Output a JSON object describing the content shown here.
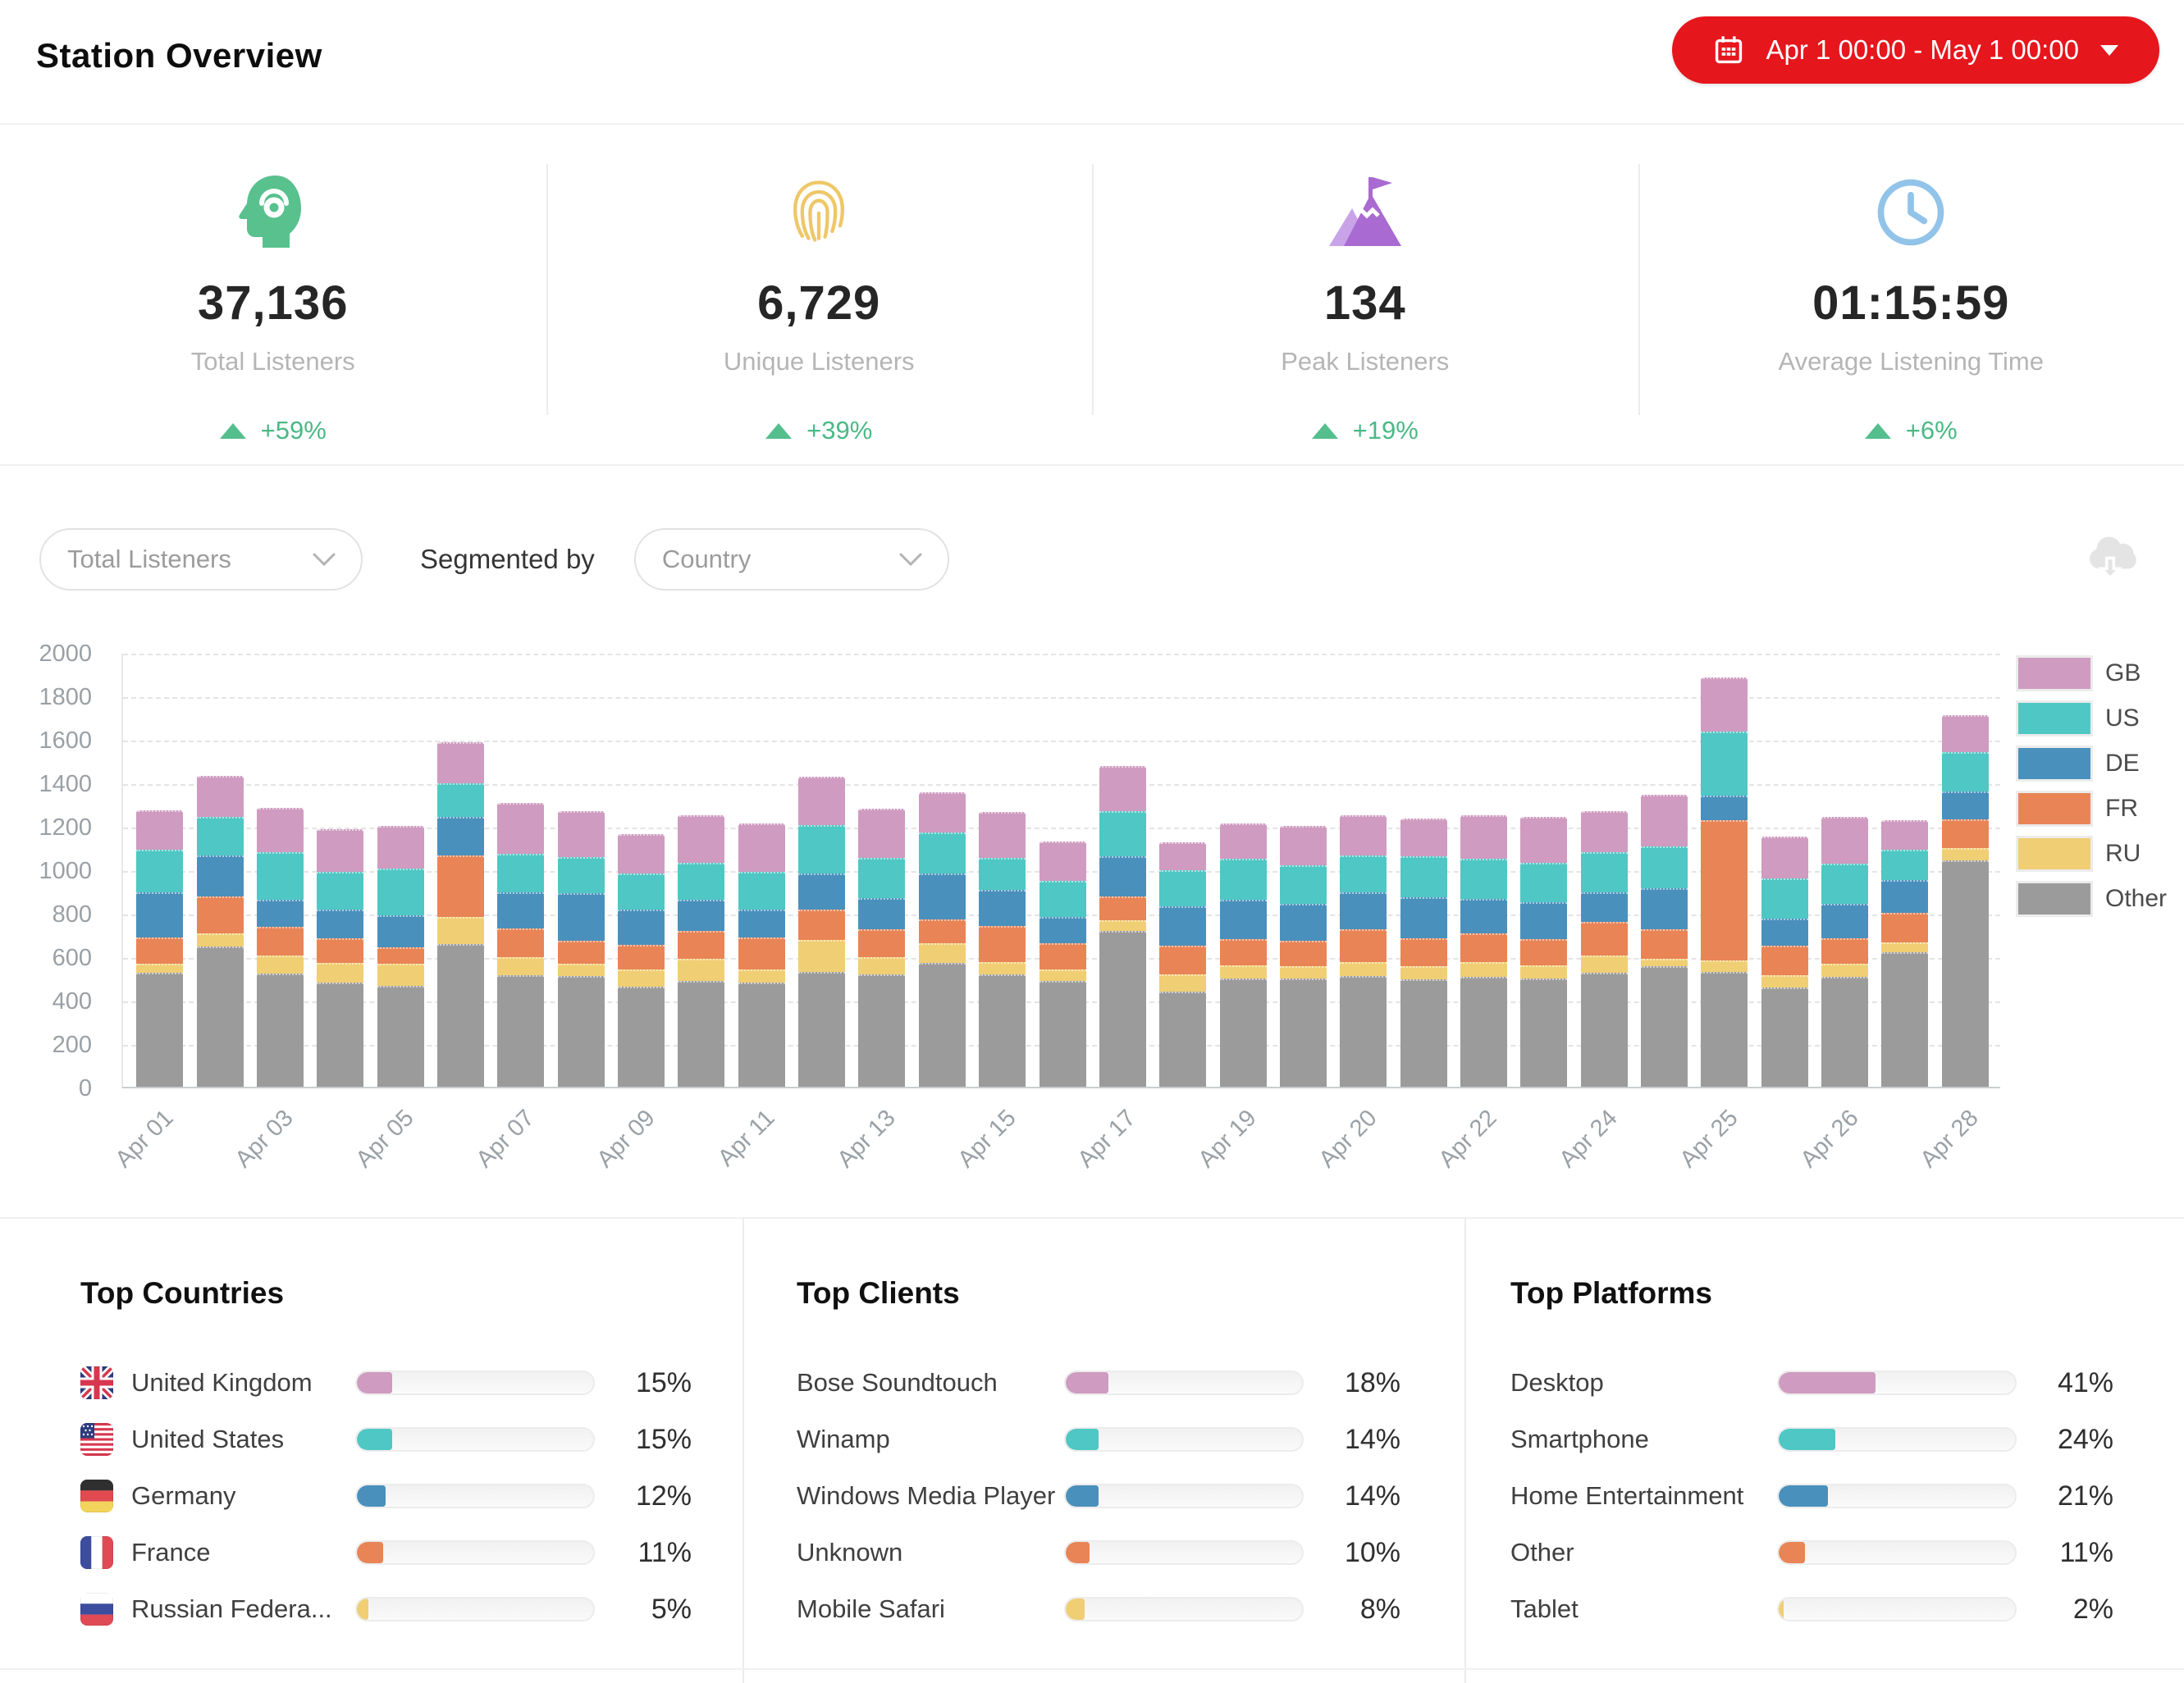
{
  "header": {
    "title": "Station Overview",
    "date_button": {
      "icon": "calendar-icon",
      "label": "Apr 1 00:00 - May 1 00:00",
      "color": "#e6161d"
    }
  },
  "stats": [
    {
      "icon": "listener-head-icon",
      "icon_color": "#58c18e",
      "value": "37,136",
      "label": "Total Listeners",
      "change": "+59%",
      "trend": "up"
    },
    {
      "icon": "fingerprint-icon",
      "icon_color": "#eec767",
      "value": "6,729",
      "label": "Unique Listeners",
      "change": "+39%",
      "trend": "up"
    },
    {
      "icon": "mountain-flag-icon",
      "icon_color": "#a96ad2",
      "value": "134",
      "label": "Peak Listeners",
      "change": "+19%",
      "trend": "up"
    },
    {
      "icon": "clock-icon",
      "icon_color": "#92c3e9",
      "value": "01:15:59",
      "label": "Average Listening Time",
      "change": "+6%",
      "trend": "up"
    }
  ],
  "controls": {
    "metric": "Total Listeners",
    "segment_label": "Segmented by",
    "segment": "Country",
    "export_icon": "cloud-download-icon"
  },
  "chart_data": {
    "type": "bar",
    "stacked": true,
    "title": "",
    "xlabel": "",
    "ylabel": "",
    "ylim": [
      0,
      2000
    ],
    "ytick_step": 200,
    "grid": "dashed-horizontal",
    "legend_position": "right",
    "x_tick_labels": [
      "Apr 01",
      "Apr 03",
      "Apr 05",
      "Apr 07",
      "Apr 09",
      "Apr 11",
      "Apr 13",
      "Apr 15",
      "Apr 17",
      "Apr 19",
      "Apr 20",
      "Apr 22",
      "Apr 24",
      "Apr 25",
      "Apr 26",
      "Apr 28"
    ],
    "x_tick_bar_indices": [
      0,
      2,
      4,
      6,
      8,
      10,
      12,
      14,
      16,
      18,
      20,
      22,
      24,
      26,
      28,
      30
    ],
    "stack_order": "first-series-on-top",
    "series": [
      {
        "name": "GB",
        "color": "#cf9bc0",
        "values": [
          180,
          190,
          205,
          195,
          195,
          190,
          235,
          215,
          180,
          218,
          223,
          223,
          226,
          185,
          211,
          181,
          206,
          130,
          160,
          180,
          185,
          175,
          200,
          210,
          190,
          240,
          248,
          190,
          215,
          135,
          171
        ]
      },
      {
        "name": "US",
        "color": "#4fc7c4",
        "values": [
          195,
          175,
          220,
          175,
          215,
          155,
          175,
          165,
          165,
          172,
          172,
          223,
          187,
          190,
          150,
          165,
          208,
          165,
          190,
          180,
          170,
          190,
          185,
          180,
          185,
          190,
          294,
          185,
          185,
          140,
          181
        ]
      },
      {
        "name": "DE",
        "color": "#4a90bc",
        "values": [
          210,
          190,
          125,
          130,
          150,
          175,
          165,
          220,
          165,
          143,
          129,
          165,
          143,
          210,
          165,
          122,
          187,
          180,
          180,
          170,
          170,
          185,
          160,
          170,
          135,
          190,
          114,
          125,
          155,
          150,
          129
        ]
      },
      {
        "name": "FR",
        "color": "#e98456",
        "values": [
          120,
          170,
          130,
          115,
          75,
          285,
          135,
          105,
          112,
          129,
          150,
          143,
          129,
          110,
          165,
          122,
          107,
          135,
          120,
          115,
          150,
          130,
          130,
          120,
          155,
          135,
          646,
          135,
          120,
          135,
          129
        ]
      },
      {
        "name": "RU",
        "color": "#f0ce73",
        "values": [
          40,
          60,
          85,
          90,
          100,
          125,
          80,
          55,
          80,
          101,
          58,
          144,
          79,
          90,
          58,
          51,
          50,
          79,
          60,
          55,
          65,
          60,
          70,
          60,
          80,
          35,
          50,
          60,
          60,
          45,
          57
        ]
      },
      {
        "name": "Other",
        "color": "#9b9b9b",
        "values": [
          525,
          645,
          520,
          480,
          465,
          655,
          515,
          510,
          460,
          487,
          480,
          530,
          516,
          570,
          516,
          487,
          717,
          437,
          500,
          500,
          510,
          495,
          505,
          500,
          525,
          555,
          530,
          455,
          505,
          620,
          1043
        ]
      }
    ]
  },
  "palette": [
    "#cf9bc0",
    "#4fc7c4",
    "#4a90bc",
    "#e98456",
    "#f0ce73"
  ],
  "top_lists": [
    {
      "title": "Top Countries",
      "rows": [
        {
          "flag": "gb",
          "label": "United Kingdom",
          "pct": 15
        },
        {
          "flag": "us",
          "label": "United States",
          "pct": 15
        },
        {
          "flag": "de",
          "label": "Germany",
          "pct": 12
        },
        {
          "flag": "fr",
          "label": "France",
          "pct": 11
        },
        {
          "flag": "ru",
          "label": "Russian Federa...",
          "pct": 5
        }
      ]
    },
    {
      "title": "Top Clients",
      "rows": [
        {
          "label": "Bose Soundtouch",
          "pct": 18
        },
        {
          "label": "Winamp",
          "pct": 14
        },
        {
          "label": "Windows Media Player",
          "pct": 14
        },
        {
          "label": "Unknown",
          "pct": 10
        },
        {
          "label": "Mobile Safari",
          "pct": 8
        }
      ]
    },
    {
      "title": "Top Platforms",
      "rows": [
        {
          "label": "Desktop",
          "pct": 41
        },
        {
          "label": "Smartphone",
          "pct": 24
        },
        {
          "label": "Home Entertainment",
          "pct": 21
        },
        {
          "label": "Other",
          "pct": 11
        },
        {
          "label": "Tablet",
          "pct": 2
        }
      ]
    }
  ]
}
